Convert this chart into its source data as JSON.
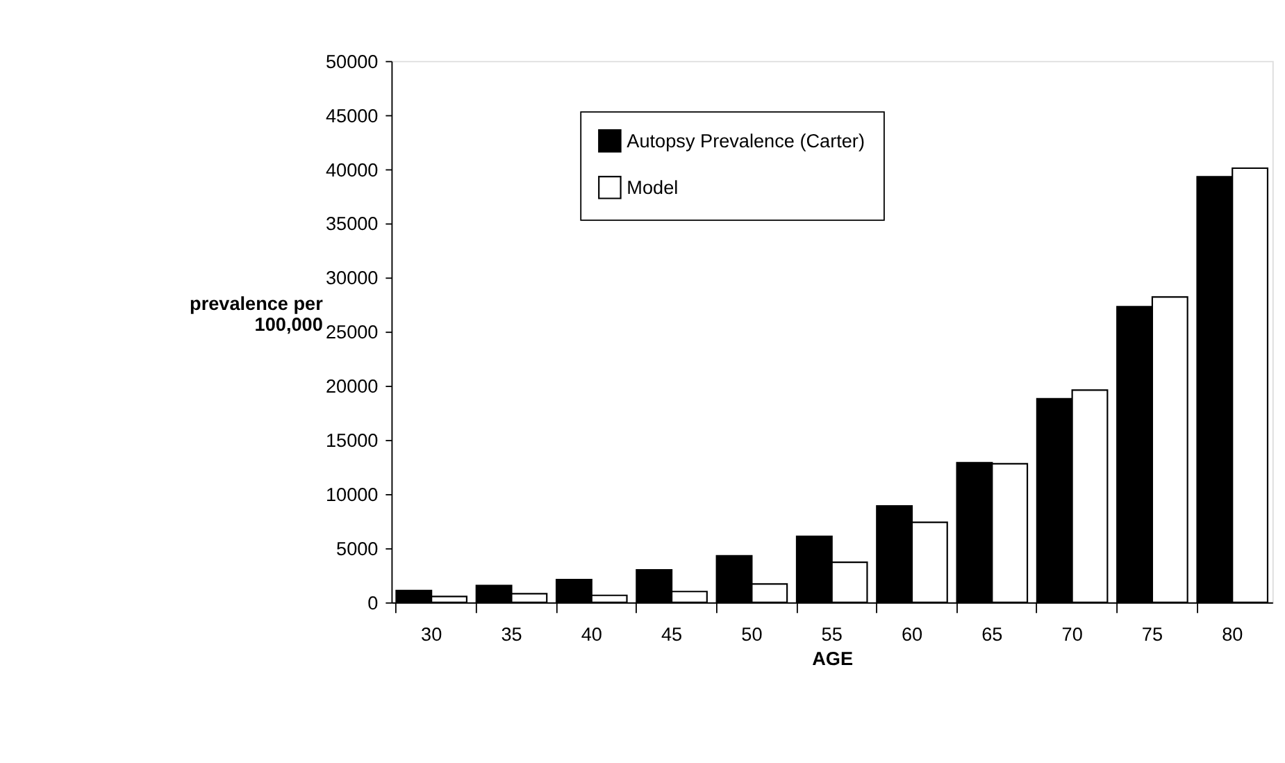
{
  "chart_data": {
    "type": "bar",
    "xlabel": "AGE",
    "ylabel": "prevalence per 100,000",
    "categories": [
      "30",
      "35",
      "40",
      "45",
      "50",
      "55",
      "60",
      "65",
      "70",
      "75",
      "80"
    ],
    "series": [
      {
        "name": "Autopsy Prevalence (Carter)",
        "color": "#000000",
        "values": [
          1100,
          1550,
          2100,
          3000,
          4300,
          6100,
          8900,
          12900,
          18800,
          27300,
          39300
        ]
      },
      {
        "name": "Model",
        "color": "#ffffff",
        "values": [
          550,
          800,
          650,
          1000,
          1700,
          3700,
          7400,
          12800,
          19600,
          28200,
          40100
        ]
      }
    ],
    "ylim": [
      0,
      50000
    ],
    "yticks": [
      0,
      5000,
      10000,
      15000,
      20000,
      25000,
      30000,
      35000,
      40000,
      45000,
      50000
    ],
    "grid": false,
    "legend": "top"
  }
}
